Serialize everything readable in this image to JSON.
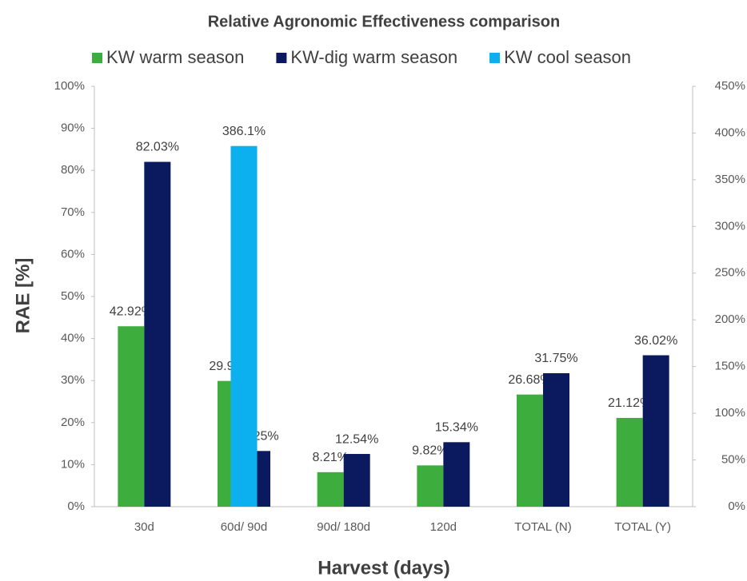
{
  "chart_data": {
    "type": "bar",
    "title": "Relative Agronomic Effectiveness comparison",
    "xlabel": "Harvest (days)",
    "ylabel": "RAE [%]",
    "categories": [
      "30d",
      "60d/ 90d",
      "90d/ 180d",
      "120d",
      "TOTAL (N)",
      "TOTAL (Y)"
    ],
    "series": [
      {
        "name": "KW warm season",
        "color": "#3dae3d",
        "values": [
          42.92,
          29.91,
          8.21,
          9.82,
          26.68,
          21.12
        ],
        "value_labels": [
          "42.92%",
          "29.91%",
          "8.21%",
          "9.82%",
          "26.68%",
          "21.12%"
        ]
      },
      {
        "name": "KW-dig warm season",
        "color": "#0b1a5e",
        "values": [
          82.03,
          13.25,
          12.54,
          15.34,
          31.75,
          36.02
        ],
        "value_labels": [
          "82.03%",
          "13.25%",
          "12.54%",
          "15.34%",
          "31.75%",
          "36.02%"
        ]
      },
      {
        "name": "KW cool season",
        "color": "#0db0ef",
        "axis": "y2",
        "values": [
          null,
          386.1,
          null,
          null,
          null,
          null
        ],
        "value_labels": [
          null,
          "386.1%",
          null,
          null,
          null,
          null
        ]
      }
    ],
    "ylim": [
      0,
      100
    ],
    "yticks": [
      {
        "value": 0,
        "label": "0%"
      },
      {
        "value": 10,
        "label": "10%"
      },
      {
        "value": 20,
        "label": "20%"
      },
      {
        "value": 30,
        "label": "30%"
      },
      {
        "value": 40,
        "label": "40%"
      },
      {
        "value": 50,
        "label": "50%"
      },
      {
        "value": 60,
        "label": "60%"
      },
      {
        "value": 70,
        "label": "70%"
      },
      {
        "value": 80,
        "label": "80%"
      },
      {
        "value": 90,
        "label": "90%"
      },
      {
        "value": 100,
        "label": "100%"
      }
    ],
    "y2lim": [
      0,
      450
    ],
    "y2ticks": [
      {
        "value": 0,
        "label": "0%"
      },
      {
        "value": 50,
        "label": "50%"
      },
      {
        "value": 100,
        "label": "100%"
      },
      {
        "value": 150,
        "label": "150%"
      },
      {
        "value": 200,
        "label": "200%"
      },
      {
        "value": 250,
        "label": "250%"
      },
      {
        "value": 300,
        "label": "300%"
      },
      {
        "value": 350,
        "label": "350%"
      },
      {
        "value": 400,
        "label": "400%"
      },
      {
        "value": 450,
        "label": "450%"
      }
    ],
    "legend": "top",
    "grid": false
  }
}
